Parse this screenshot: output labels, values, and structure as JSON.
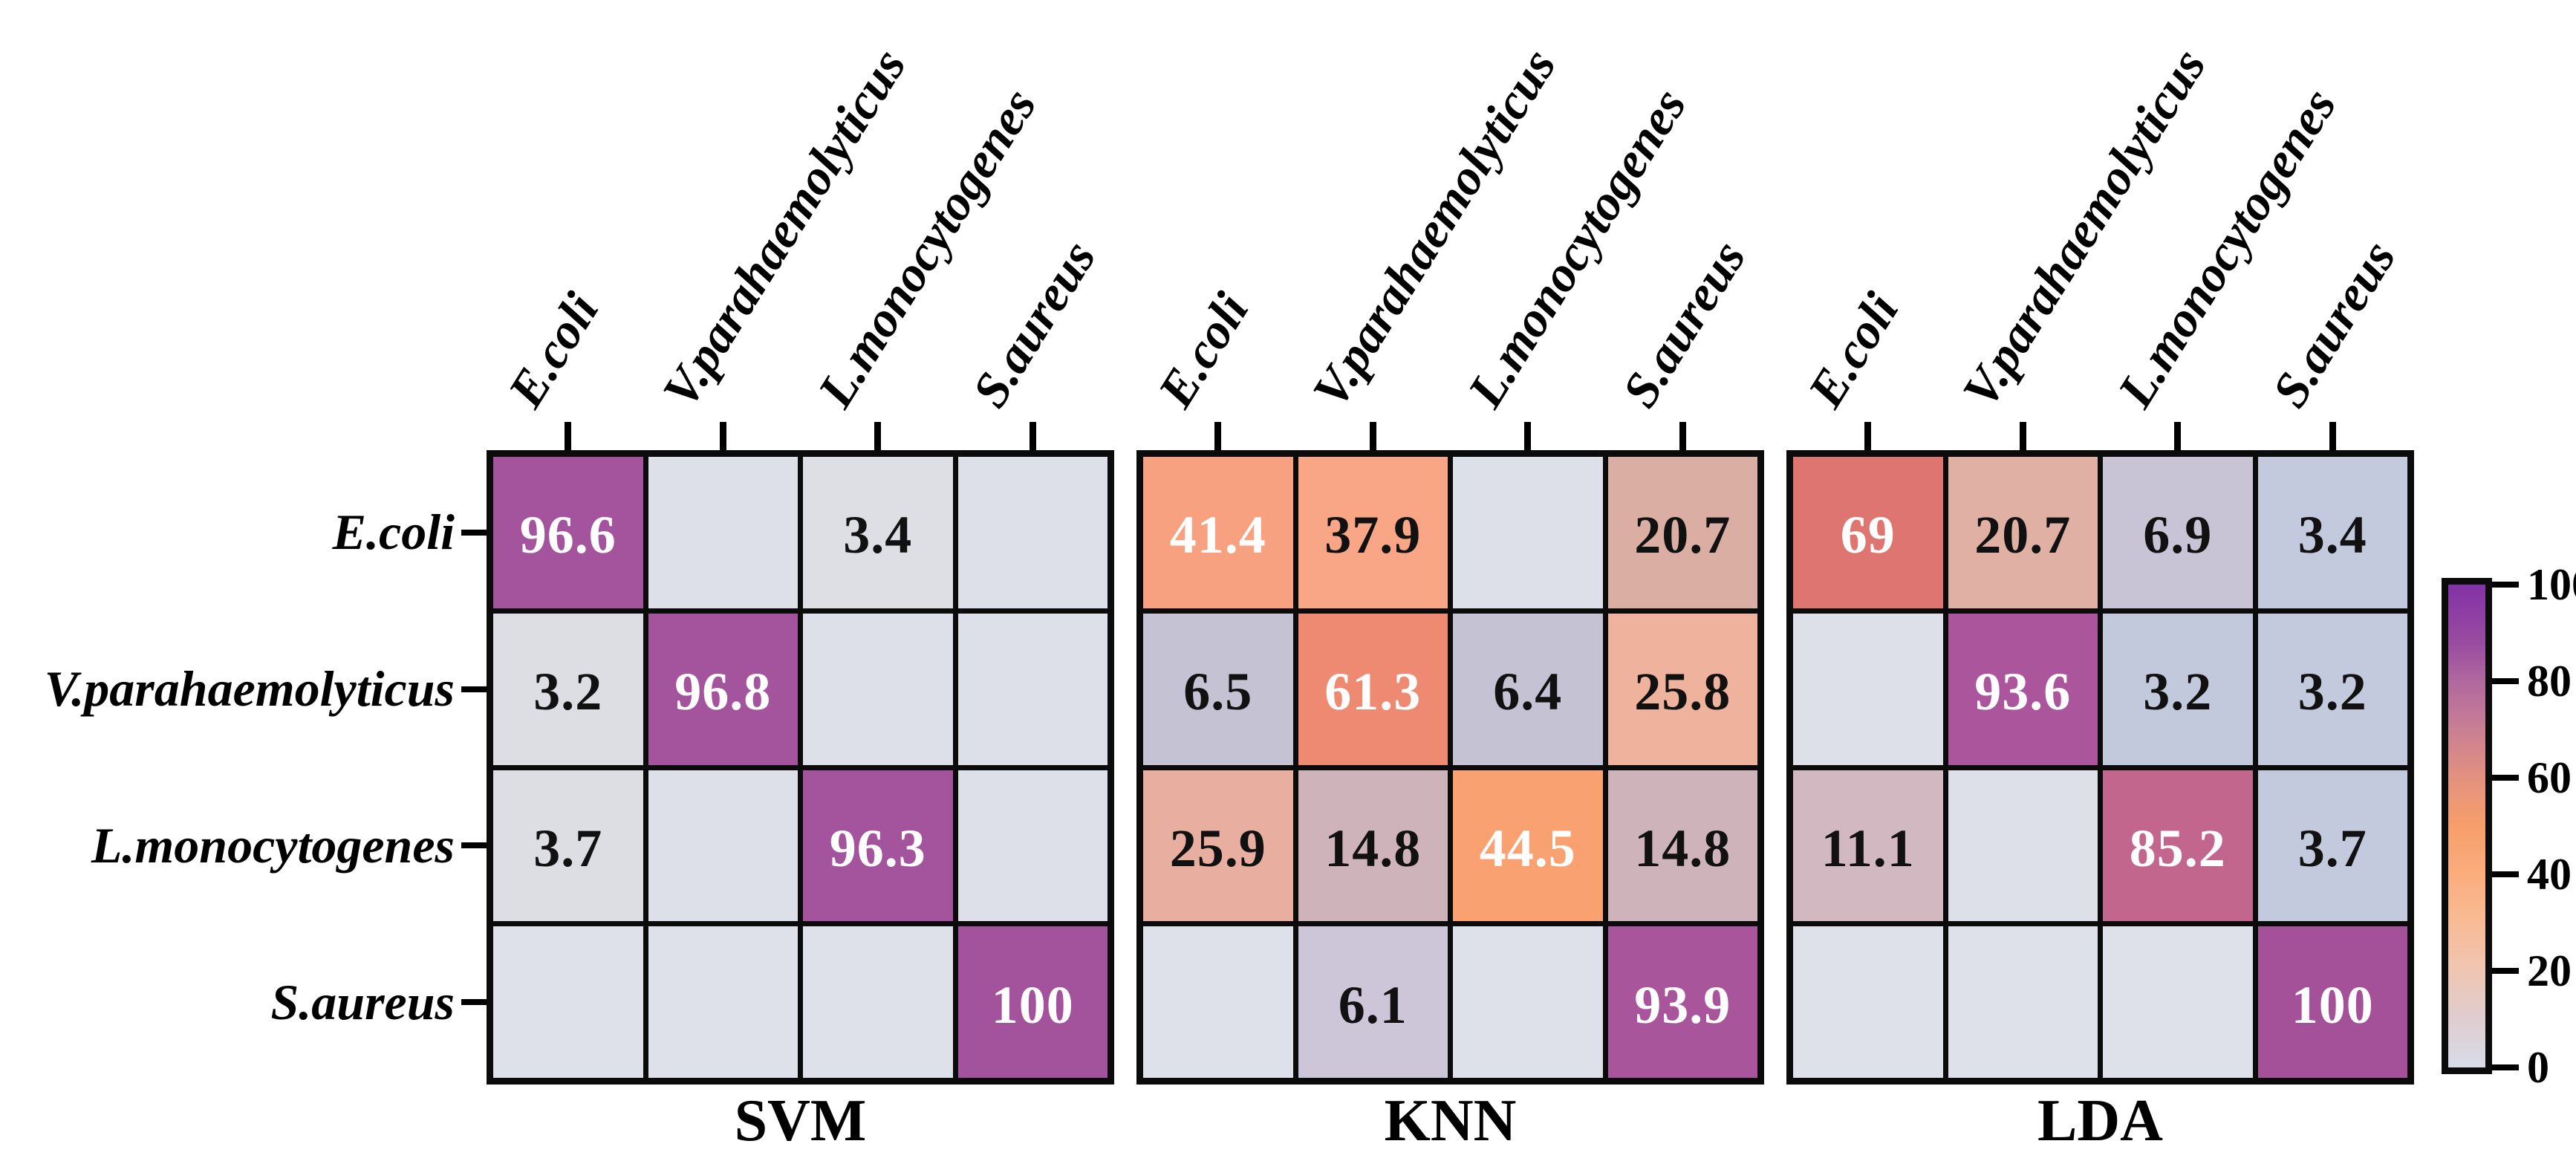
{
  "page": {
    "background": "#ffffff"
  },
  "species": [
    "E.coli",
    "V.parahaemolyticus",
    "L.monocytogenes",
    "S.aureus"
  ],
  "matrices": [
    {
      "label": "SVM",
      "cells": [
        [
          {
            "t": "96.6",
            "bg": "#A3549C",
            "fg": "#FFFFFF"
          },
          {
            "t": "",
            "bg": "#DDE0E9",
            "fg": "#111111"
          },
          {
            "t": "3.4",
            "bg": "#DEDEE5",
            "fg": "#111111"
          },
          {
            "t": "",
            "bg": "#DDE0E9",
            "fg": "#111111"
          }
        ],
        [
          {
            "t": "3.2",
            "bg": "#DDDDE4",
            "fg": "#111111"
          },
          {
            "t": "96.8",
            "bg": "#A3549C",
            "fg": "#FFFFFF"
          },
          {
            "t": "",
            "bg": "#DDE0E9",
            "fg": "#111111"
          },
          {
            "t": "",
            "bg": "#DDE0E9",
            "fg": "#111111"
          }
        ],
        [
          {
            "t": "3.7",
            "bg": "#DDDDE4",
            "fg": "#111111"
          },
          {
            "t": "",
            "bg": "#DDE0E9",
            "fg": "#111111"
          },
          {
            "t": "96.3",
            "bg": "#A3549C",
            "fg": "#FFFFFF"
          },
          {
            "t": "",
            "bg": "#DDE0E9",
            "fg": "#111111"
          }
        ],
        [
          {
            "t": "",
            "bg": "#DEE1E9",
            "fg": "#111111"
          },
          {
            "t": "",
            "bg": "#DEE1E9",
            "fg": "#111111"
          },
          {
            "t": "",
            "bg": "#DEE1E9",
            "fg": "#111111"
          },
          {
            "t": "100",
            "bg": "#A3539C",
            "fg": "#FFFFFF"
          }
        ]
      ]
    },
    {
      "label": "KNN",
      "cells": [
        [
          {
            "t": "41.4",
            "bg": "#F8A180",
            "fg": "#FFFFFF"
          },
          {
            "t": "37.9",
            "bg": "#F9A687",
            "fg": "#111111"
          },
          {
            "t": "",
            "bg": "#DDE0E9",
            "fg": "#111111"
          },
          {
            "t": "20.7",
            "bg": "#DAAEA3",
            "fg": "#111111"
          }
        ],
        [
          {
            "t": "6.5",
            "bg": "#C5C2D4",
            "fg": "#111111"
          },
          {
            "t": "61.3",
            "bg": "#EF8A72",
            "fg": "#FFFFFF"
          },
          {
            "t": "6.4",
            "bg": "#C5C2D4",
            "fg": "#111111"
          },
          {
            "t": "25.8",
            "bg": "#EFB29D",
            "fg": "#111111"
          }
        ],
        [
          {
            "t": "25.9",
            "bg": "#E8AFA1",
            "fg": "#111111"
          },
          {
            "t": "14.8",
            "bg": "#CEB3BB",
            "fg": "#111111"
          },
          {
            "t": "44.5",
            "bg": "#FAA171",
            "fg": "#FFFFFF"
          },
          {
            "t": "14.8",
            "bg": "#CEB3BB",
            "fg": "#111111"
          }
        ],
        [
          {
            "t": "",
            "bg": "#DEE1E9",
            "fg": "#111111"
          },
          {
            "t": "6.1",
            "bg": "#CCC6D8",
            "fg": "#111111"
          },
          {
            "t": "",
            "bg": "#DEE1E9",
            "fg": "#111111"
          },
          {
            "t": "93.9",
            "bg": "#A8559B",
            "fg": "#FFFFFF"
          }
        ]
      ]
    },
    {
      "label": "LDA",
      "cells": [
        [
          {
            "t": "69",
            "bg": "#DE7571",
            "fg": "#FFFFFF"
          },
          {
            "t": "20.7",
            "bg": "#E1B0A5",
            "fg": "#111111"
          },
          {
            "t": "6.9",
            "bg": "#C8C4D6",
            "fg": "#111111"
          },
          {
            "t": "3.4",
            "bg": "#C4CADE",
            "fg": "#111111"
          }
        ],
        [
          {
            "t": "",
            "bg": "#DDE0E9",
            "fg": "#111111"
          },
          {
            "t": "93.6",
            "bg": "#AB569C",
            "fg": "#FFFFFF"
          },
          {
            "t": "3.2",
            "bg": "#C2C9DC",
            "fg": "#111111"
          },
          {
            "t": "3.2",
            "bg": "#C3CADD",
            "fg": "#111111"
          }
        ],
        [
          {
            "t": "11.1",
            "bg": "#D2B9C1",
            "fg": "#111111"
          },
          {
            "t": "",
            "bg": "#DDE0E9",
            "fg": "#111111"
          },
          {
            "t": "85.2",
            "bg": "#C3668D",
            "fg": "#FFFFFF"
          },
          {
            "t": "3.7",
            "bg": "#C3CADD",
            "fg": "#111111"
          }
        ],
        [
          {
            "t": "",
            "bg": "#DEE1E9",
            "fg": "#111111"
          },
          {
            "t": "",
            "bg": "#DEE1E9",
            "fg": "#111111"
          },
          {
            "t": "",
            "bg": "#DEE1E9",
            "fg": "#111111"
          },
          {
            "t": "100",
            "bg": "#A4519A",
            "fg": "#FFFFFF"
          }
        ]
      ]
    }
  ],
  "colorbar": {
    "tick_labels": [
      "100",
      "80",
      "60",
      "40",
      "20",
      "0"
    ],
    "gradient": [
      [
        "0%",
        "#8233A6"
      ],
      [
        "5%",
        "#8C3CA3"
      ],
      [
        "12%",
        "#9A4BA0"
      ],
      [
        "20%",
        "#B0689F"
      ],
      [
        "30%",
        "#C97F93"
      ],
      [
        "40%",
        "#E39181"
      ],
      [
        "50%",
        "#F79E6B"
      ],
      [
        "60%",
        "#FAAD7E"
      ],
      [
        "70%",
        "#F8BB95"
      ],
      [
        "80%",
        "#EFC6B2"
      ],
      [
        "90%",
        "#DFCDD0"
      ],
      [
        "100%",
        "#D8DCE8"
      ]
    ]
  },
  "chart_data": {
    "type": "heatmap",
    "title": "",
    "categories": [
      "E.coli",
      "V.parahaemolyticus",
      "L.monocytogenes",
      "S.aureus"
    ],
    "row_axis": "true class (left labels)",
    "col_axis": "predicted class (top labels, rotated)",
    "colorbar": {
      "min": 0,
      "max": 100,
      "ticks": [
        0,
        20,
        40,
        60,
        80,
        100
      ],
      "position": "right"
    },
    "legend_position": "right",
    "grid": "black cell borders",
    "matrices": [
      {
        "name": "SVM",
        "rows": [
          [
            96.6,
            null,
            3.4,
            null
          ],
          [
            3.2,
            96.8,
            null,
            null
          ],
          [
            3.7,
            null,
            96.3,
            null
          ],
          [
            null,
            null,
            null,
            100
          ]
        ]
      },
      {
        "name": "KNN",
        "rows": [
          [
            41.4,
            37.9,
            null,
            20.7
          ],
          [
            6.5,
            61.3,
            6.4,
            25.8
          ],
          [
            25.9,
            14.8,
            44.5,
            14.8
          ],
          [
            null,
            6.1,
            null,
            93.9
          ]
        ]
      },
      {
        "name": "LDA",
        "rows": [
          [
            69,
            20.7,
            6.9,
            3.4
          ],
          [
            null,
            93.6,
            3.2,
            3.2
          ],
          [
            11.1,
            null,
            85.2,
            3.7
          ],
          [
            null,
            null,
            null,
            100
          ]
        ]
      }
    ]
  }
}
